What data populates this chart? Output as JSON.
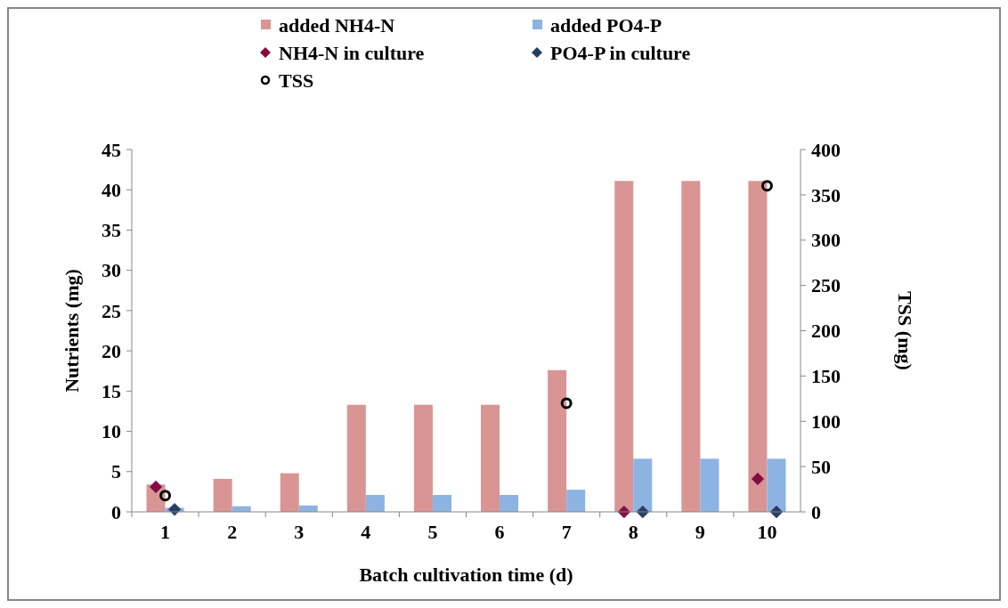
{
  "chart_data": {
    "type": "bar",
    "xlabel": "Batch cultivation time (d)",
    "ylabel": "Nutrients (mg)",
    "y2label": "TSS (mg)",
    "categories": [
      "1",
      "2",
      "3",
      "4",
      "5",
      "6",
      "7",
      "8",
      "9",
      "10"
    ],
    "series": [
      {
        "name": "added NH4-N",
        "color": "#d99594",
        "values": [
          3.4,
          4.1,
          4.8,
          13.3,
          13.3,
          13.3,
          17.6,
          41.1,
          41.1,
          41.1
        ]
      },
      {
        "name": "added PO4-P",
        "color": "#8db3e2",
        "values": [
          0.5,
          0.7,
          0.8,
          2.1,
          2.1,
          2.1,
          2.75,
          6.6,
          6.6,
          6.6
        ]
      },
      {
        "name": "NH4-N in culture",
        "type": "scatter",
        "marker": "diamond",
        "color": "#8b0a3c",
        "values": [
          3.1,
          null,
          null,
          null,
          null,
          null,
          null,
          0,
          null,
          4.1
        ]
      },
      {
        "name": "PO4-P in culture",
        "type": "scatter",
        "marker": "diamond",
        "color": "#243f60",
        "values": [
          0.3,
          null,
          null,
          null,
          null,
          null,
          null,
          0,
          null,
          0
        ]
      },
      {
        "name": "TSS",
        "type": "scatter",
        "marker": "circle",
        "color": "#000000",
        "axis": "y2",
        "values": [
          18,
          null,
          null,
          null,
          null,
          null,
          120,
          null,
          null,
          360
        ]
      }
    ],
    "ylim": [
      0,
      45
    ],
    "yticks": [
      0,
      5,
      10,
      15,
      20,
      25,
      30,
      35,
      40,
      45
    ],
    "y2lim": [
      0,
      400
    ],
    "y2ticks": [
      0,
      50,
      100,
      150,
      200,
      250,
      300,
      350,
      400
    ],
    "grid": false,
    "legend": "top"
  }
}
